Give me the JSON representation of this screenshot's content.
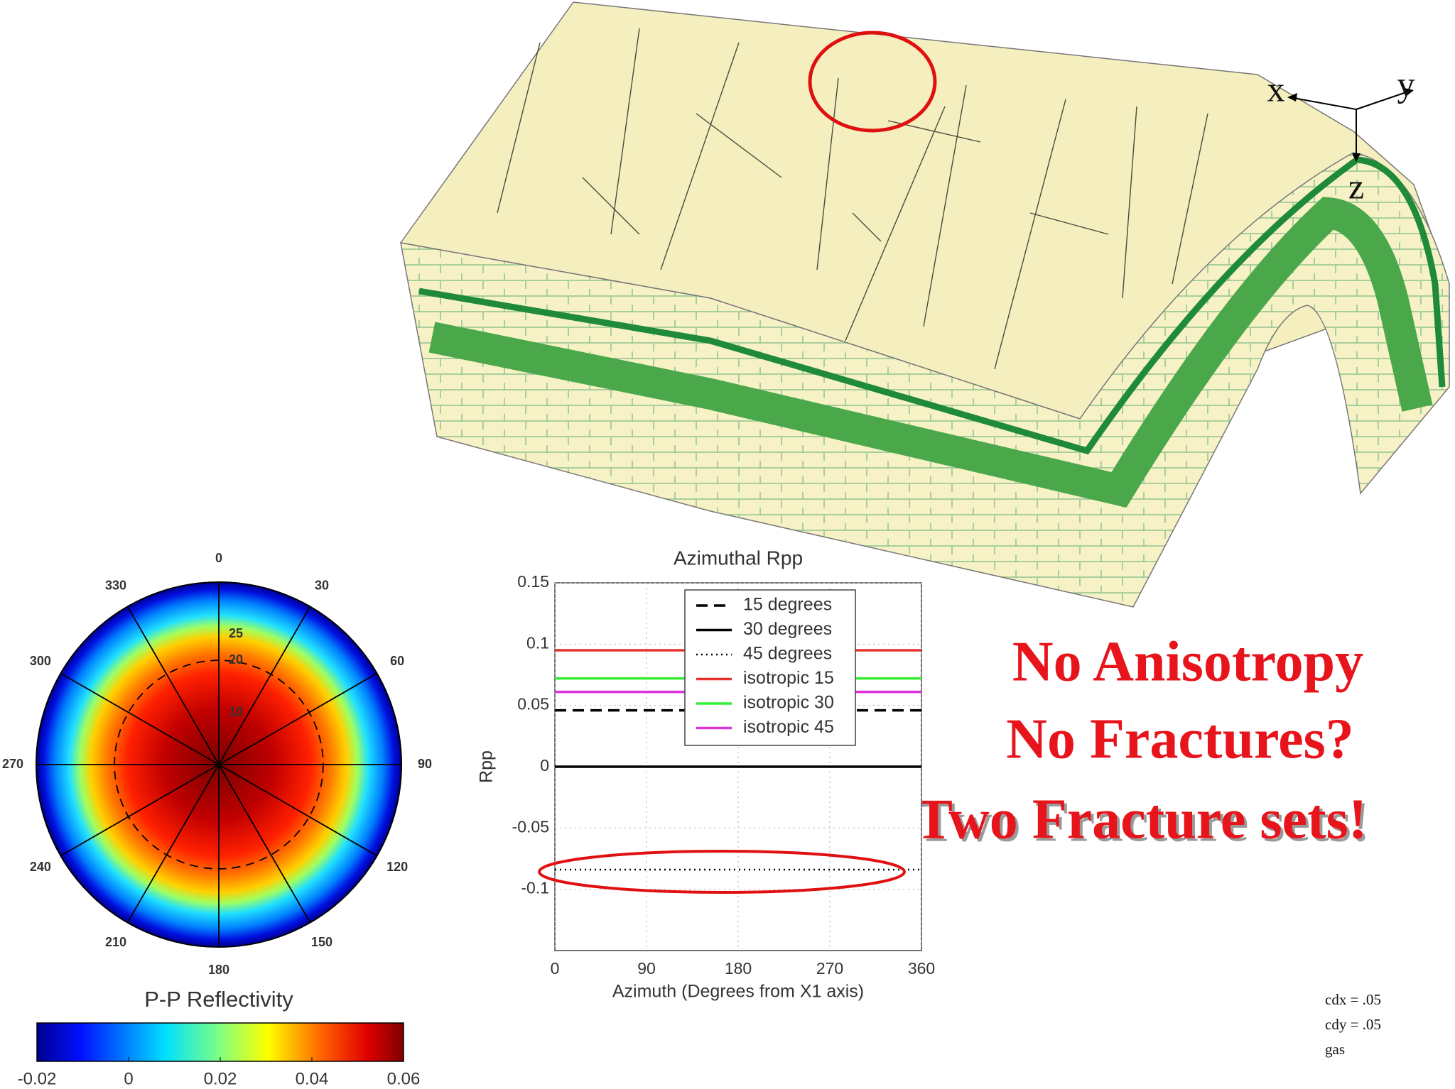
{
  "diagram": {
    "axes": [
      "x",
      "y",
      "z"
    ]
  },
  "annotations": [
    "No Anisotropy",
    "No Fractures?",
    "Two Fracture sets!"
  ],
  "notes": [
    "cdx = .05",
    "cdy = .05",
    "gas"
  ],
  "chart_data": [
    {
      "type": "polar",
      "xlabel": "P-P Reflectivity",
      "angle_ticks": [
        0,
        30,
        60,
        90,
        120,
        150,
        180,
        210,
        240,
        270,
        300,
        330
      ],
      "rlim": [
        0,
        35
      ],
      "rticks": [
        10,
        20,
        25
      ],
      "ring": 20,
      "colorbar": {
        "lim": [
          -0.02,
          0.06
        ],
        "ticks": [
          -0.02,
          0,
          0.02,
          0.04,
          0.06
        ]
      }
    },
    {
      "type": "line",
      "title": "Azimuthal Rpp",
      "xlabel": "Azimuth (Degrees from X1 axis)",
      "ylabel": "Rpp",
      "x": [
        0,
        360
      ],
      "xlim": [
        0,
        360
      ],
      "xticks": [
        0,
        90,
        180,
        270,
        360
      ],
      "ylim": [
        -0.15,
        0.15
      ],
      "yticks": [
        0.15,
        0.1,
        0.05,
        0,
        -0.05,
        -0.1
      ],
      "grid": true,
      "legend": "upper center",
      "series": [
        {
          "name": "15 degrees",
          "color": "#000000",
          "style": "dashed",
          "values": [
            0.046,
            0.046
          ]
        },
        {
          "name": "30 degrees",
          "color": "#000000",
          "style": "solid",
          "values": [
            0,
            0
          ]
        },
        {
          "name": "45 degrees",
          "color": "#000000",
          "style": "dotted",
          "values": [
            -0.084,
            -0.084
          ]
        },
        {
          "name": "isotropic 15",
          "color": "#e8302a",
          "style": "solid",
          "values": [
            0.095,
            0.095
          ]
        },
        {
          "name": "isotropic 30",
          "color": "#33ee33",
          "style": "solid",
          "values": [
            0.072,
            0.072
          ]
        },
        {
          "name": "isotropic 45",
          "color": "#dd33dd",
          "style": "solid",
          "values": [
            0.061,
            0.061
          ]
        }
      ]
    }
  ]
}
